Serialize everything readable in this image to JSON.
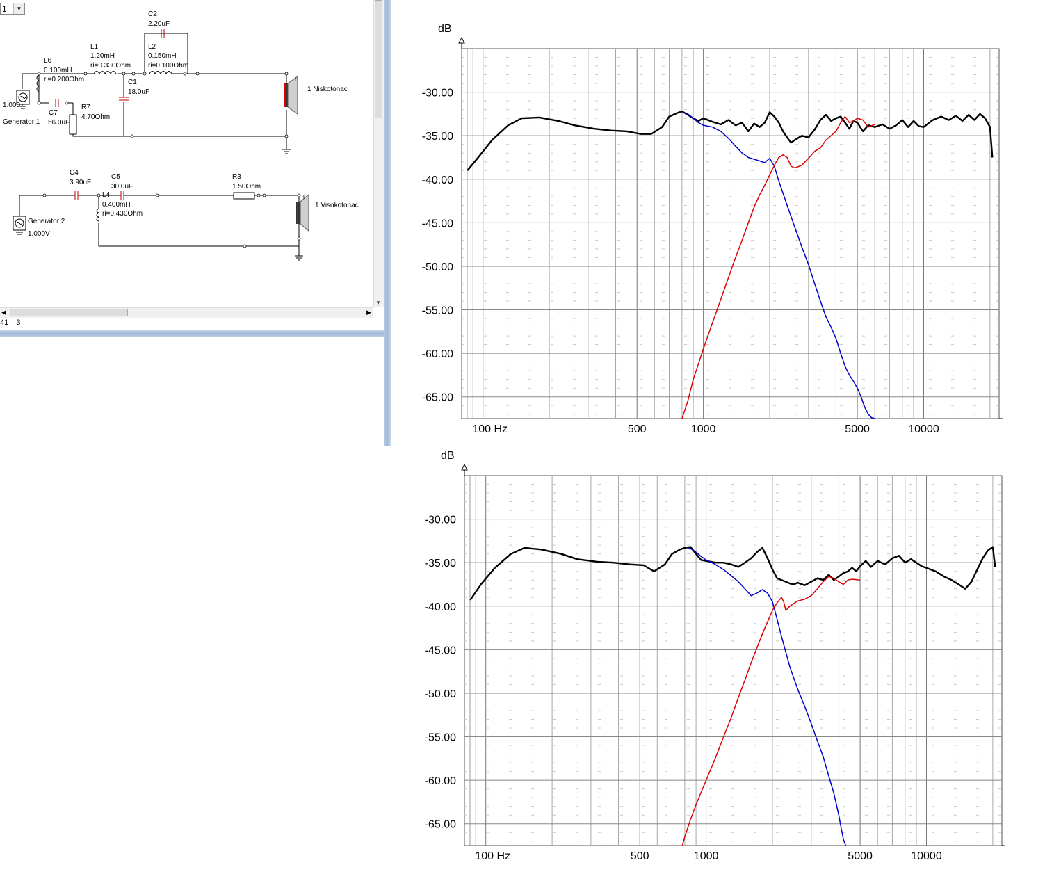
{
  "window": {
    "combo_value": "1",
    "status": {
      "left": "41",
      "right": "3"
    }
  },
  "schematic": {
    "components": {
      "L6": {
        "name": "L6",
        "value": "0.100mH",
        "ri": "ri=0.200Ohm"
      },
      "L1": {
        "name": "L1",
        "value": "1.20mH",
        "ri": "ri=0.330Ohm"
      },
      "C2": {
        "name": "C2",
        "value": "2.20uF"
      },
      "L2": {
        "name": "L2",
        "value": "0.150mH",
        "ri": "ri=0.100Ohm"
      },
      "C1": {
        "name": "C1",
        "value": "18.0uF"
      },
      "C7": {
        "name": "C7",
        "value": "56.0uF"
      },
      "R7": {
        "name": "R7",
        "value": "4.70Ohm"
      },
      "gen1": {
        "name": "Generator 1",
        "value": "1.000"
      },
      "spk1": {
        "name": "1 Niskotonac"
      },
      "C4": {
        "name": "C4",
        "value": "3.90uF"
      },
      "C5": {
        "name": "C5",
        "value": "30.0uF"
      },
      "L4": {
        "name": "L4",
        "value": "0.400mH",
        "ri": "ri=0.430Ohm"
      },
      "R3": {
        "name": "R3",
        "value": "1.50Ohm"
      },
      "gen2": {
        "name": "Generator 2",
        "value": "1.000V"
      },
      "spk2": {
        "name": "1 Visokotonac"
      }
    }
  },
  "chart_data": [
    {
      "type": "line",
      "xscale": "log",
      "xlim": [
        80,
        22000
      ],
      "ylim": [
        -67.5,
        -25
      ],
      "ylabel": "dB",
      "xlabel": "Hz",
      "xticks": [
        {
          "v": 100,
          "label": "100 Hz"
        },
        {
          "v": 500,
          "label": "500"
        },
        {
          "v": 1000,
          "label": "1000"
        },
        {
          "v": 5000,
          "label": "5000"
        },
        {
          "v": 10000,
          "label": "10000"
        }
      ],
      "yticks": [
        {
          "v": -30,
          "label": "-30.00"
        },
        {
          "v": -35,
          "label": "-35.00"
        },
        {
          "v": -40,
          "label": "-40.00"
        },
        {
          "v": -45,
          "label": "-45.00"
        },
        {
          "v": -50,
          "label": "-50.00"
        },
        {
          "v": -55,
          "label": "-55.00"
        },
        {
          "v": -60,
          "label": "-60.00"
        },
        {
          "v": -65,
          "label": "-65.00"
        }
      ],
      "grid": true,
      "series": [
        {
          "color": "#000000",
          "width": 2.4,
          "x": [
            85,
            95,
            110,
            130,
            150,
            180,
            220,
            260,
            320,
            380,
            450,
            520,
            580,
            650,
            700,
            760,
            800,
            850,
            900,
            950,
            1000,
            1100,
            1200,
            1300,
            1400,
            1500,
            1600,
            1700,
            1800,
            1900,
            2000,
            2100,
            2200,
            2300,
            2400,
            2500,
            2600,
            2800,
            3000,
            3200,
            3400,
            3600,
            3800,
            4000,
            4200,
            4400,
            4600,
            4800,
            5000,
            5300,
            5600,
            6000,
            6500,
            7000,
            7500,
            8000,
            8500,
            9000,
            9500,
            10000,
            11000,
            12000,
            13000,
            14000,
            15000,
            16000,
            17000,
            18000,
            19000,
            20000,
            20500
          ],
          "y": [
            -39,
            -37.5,
            -35.5,
            -33.8,
            -33.0,
            -32.9,
            -33.3,
            -33.8,
            -34.2,
            -34.4,
            -34.5,
            -34.8,
            -34.8,
            -34.0,
            -32.8,
            -32.4,
            -32.2,
            -32.6,
            -33.0,
            -33.3,
            -33.0,
            -33.4,
            -33.7,
            -33.2,
            -33.8,
            -33.5,
            -34.5,
            -33.6,
            -34.0,
            -33.5,
            -32.3,
            -32.8,
            -33.5,
            -34.5,
            -35.2,
            -35.8,
            -35.5,
            -35.0,
            -35.2,
            -34.3,
            -33.2,
            -32.6,
            -33.3,
            -33.0,
            -32.8,
            -33.5,
            -34.2,
            -33.3,
            -33.5,
            -34.5,
            -33.8,
            -34.0,
            -33.7,
            -34.2,
            -33.8,
            -33.2,
            -34.0,
            -33.3,
            -33.9,
            -34.0,
            -33.2,
            -32.8,
            -33.2,
            -32.7,
            -33.3,
            -32.6,
            -33.2,
            -32.5,
            -33.0,
            -34.0,
            -37.5
          ]
        },
        {
          "color": "#0000cc",
          "width": 1.5,
          "x": [
            820,
            850,
            900,
            950,
            1000,
            1100,
            1200,
            1300,
            1400,
            1500,
            1600,
            1700,
            1800,
            1900,
            2000,
            2100,
            2200,
            2400,
            2600,
            2800,
            3000,
            3200,
            3400,
            3600,
            3800,
            4000,
            4200,
            4400,
            4600,
            4800,
            5000,
            5200,
            5400,
            5600,
            5800,
            6000
          ],
          "y": [
            -32.4,
            -32.5,
            -33.0,
            -33.5,
            -33.8,
            -34.0,
            -34.5,
            -35.3,
            -36.2,
            -37.0,
            -37.5,
            -37.7,
            -37.9,
            -38.1,
            -37.6,
            -38.5,
            -40.2,
            -43.0,
            -45.5,
            -47.8,
            -49.8,
            -52.0,
            -54.0,
            -55.8,
            -57.0,
            -58.3,
            -60.0,
            -61.5,
            -62.5,
            -63.2,
            -64.0,
            -65.0,
            -66.2,
            -67.0,
            -67.4,
            -67.5
          ]
        },
        {
          "color": "#dd0000",
          "width": 1.5,
          "x": [
            800,
            850,
            900,
            1000,
            1100,
            1200,
            1300,
            1400,
            1500,
            1600,
            1700,
            1800,
            1900,
            2000,
            2100,
            2200,
            2300,
            2400,
            2500,
            2600,
            2800,
            3000,
            3200,
            3400,
            3600,
            3800,
            4000,
            4200,
            4400,
            4600,
            4800,
            5000,
            5300,
            5600,
            6000
          ],
          "y": [
            -67.5,
            -65.5,
            -63.0,
            -59.5,
            -56.5,
            -53.8,
            -51.3,
            -49.0,
            -47.0,
            -45.0,
            -43.2,
            -41.8,
            -40.7,
            -39.5,
            -38.4,
            -37.5,
            -37.2,
            -37.5,
            -38.5,
            -38.7,
            -38.4,
            -37.6,
            -36.8,
            -36.4,
            -35.5,
            -35.0,
            -34.5,
            -33.5,
            -32.8,
            -33.5,
            -33.3,
            -33.0,
            -33.2,
            -34.0,
            -33.7
          ]
        }
      ]
    },
    {
      "type": "line",
      "xscale": "log",
      "xlim": [
        80,
        22000
      ],
      "ylim": [
        -67.5,
        -25
      ],
      "ylabel": "dB",
      "xlabel": "Hz",
      "xticks": [
        {
          "v": 100,
          "label": "100 Hz"
        },
        {
          "v": 500,
          "label": "500"
        },
        {
          "v": 1000,
          "label": "1000"
        },
        {
          "v": 5000,
          "label": "5000"
        },
        {
          "v": 10000,
          "label": "10000"
        }
      ],
      "yticks": [
        {
          "v": -30,
          "label": "-30.00"
        },
        {
          "v": -35,
          "label": "-35.00"
        },
        {
          "v": -40,
          "label": "-40.00"
        },
        {
          "v": -45,
          "label": "-45.00"
        },
        {
          "v": -50,
          "label": "-50.00"
        },
        {
          "v": -55,
          "label": "-55.00"
        },
        {
          "v": -60,
          "label": "-60.00"
        },
        {
          "v": -65,
          "label": "-65.00"
        }
      ],
      "grid": true,
      "series": [
        {
          "color": "#000000",
          "width": 2.4,
          "x": [
            85,
            95,
            110,
            130,
            150,
            180,
            220,
            260,
            320,
            380,
            450,
            520,
            580,
            650,
            700,
            760,
            800,
            850,
            900,
            950,
            1000,
            1100,
            1200,
            1300,
            1400,
            1500,
            1600,
            1700,
            1800,
            1900,
            2000,
            2100,
            2200,
            2300,
            2400,
            2500,
            2600,
            2800,
            3000,
            3200,
            3400,
            3600,
            3800,
            4000,
            4200,
            4400,
            4600,
            4800,
            5000,
            5300,
            5600,
            6000,
            6500,
            7000,
            7500,
            8000,
            8500,
            9000,
            9500,
            10000,
            11000,
            12000,
            13000,
            14000,
            15000,
            16000,
            17000,
            18000,
            19000,
            20000,
            20500
          ],
          "y": [
            -39.3,
            -37.5,
            -35.6,
            -34.0,
            -33.3,
            -33.5,
            -34.0,
            -34.6,
            -34.9,
            -35.0,
            -35.2,
            -35.3,
            -36.0,
            -35.2,
            -34.0,
            -33.5,
            -33.3,
            -33.2,
            -34.0,
            -34.7,
            -34.8,
            -35.0,
            -35.0,
            -35.2,
            -35.5,
            -35.0,
            -34.5,
            -33.8,
            -33.3,
            -34.5,
            -35.8,
            -36.8,
            -37.0,
            -37.2,
            -37.4,
            -37.5,
            -37.3,
            -37.6,
            -37.2,
            -36.8,
            -37.0,
            -36.4,
            -37.0,
            -36.6,
            -36.2,
            -36.0,
            -35.6,
            -36.0,
            -35.4,
            -34.8,
            -35.5,
            -34.8,
            -35.2,
            -34.5,
            -34.2,
            -35.0,
            -34.6,
            -35.0,
            -35.4,
            -35.6,
            -36.0,
            -36.6,
            -37.0,
            -37.5,
            -38.0,
            -37.2,
            -35.8,
            -34.5,
            -33.6,
            -33.2,
            -35.5
          ]
        },
        {
          "color": "#0000cc",
          "width": 1.5,
          "x": [
            820,
            850,
            900,
            950,
            1000,
            1100,
            1200,
            1300,
            1400,
            1500,
            1600,
            1700,
            1800,
            1900,
            2000,
            2100,
            2200,
            2400,
            2600,
            2800,
            3000,
            3200,
            3400,
            3600,
            3800,
            4000,
            4100,
            4200,
            4300
          ],
          "y": [
            -33.3,
            -33.4,
            -33.8,
            -34.3,
            -34.7,
            -35.2,
            -35.8,
            -36.5,
            -37.2,
            -38.0,
            -38.8,
            -38.5,
            -38.1,
            -38.5,
            -39.5,
            -41.5,
            -43.5,
            -47.0,
            -49.5,
            -51.5,
            -53.5,
            -55.5,
            -57.3,
            -59.5,
            -61.5,
            -64.0,
            -65.5,
            -66.8,
            -67.5
          ]
        },
        {
          "color": "#dd0000",
          "width": 1.5,
          "x": [
            780,
            800,
            850,
            900,
            1000,
            1100,
            1200,
            1300,
            1400,
            1500,
            1600,
            1700,
            1800,
            1900,
            2000,
            2100,
            2200,
            2250,
            2300,
            2400,
            2600,
            2800,
            3000,
            3200,
            3400,
            3600,
            3800,
            4000,
            4200,
            4400,
            4600,
            5000
          ],
          "y": [
            -67.5,
            -66.5,
            -64.5,
            -62.8,
            -60.0,
            -57.5,
            -55.0,
            -52.8,
            -50.5,
            -48.5,
            -46.5,
            -44.8,
            -43.2,
            -41.8,
            -40.5,
            -39.6,
            -39.0,
            -39.5,
            -40.5,
            -40.0,
            -39.4,
            -39.2,
            -38.8,
            -38.0,
            -37.2,
            -36.6,
            -36.8,
            -37.2,
            -37.5,
            -37.0,
            -36.9,
            -37.0
          ]
        }
      ]
    }
  ]
}
